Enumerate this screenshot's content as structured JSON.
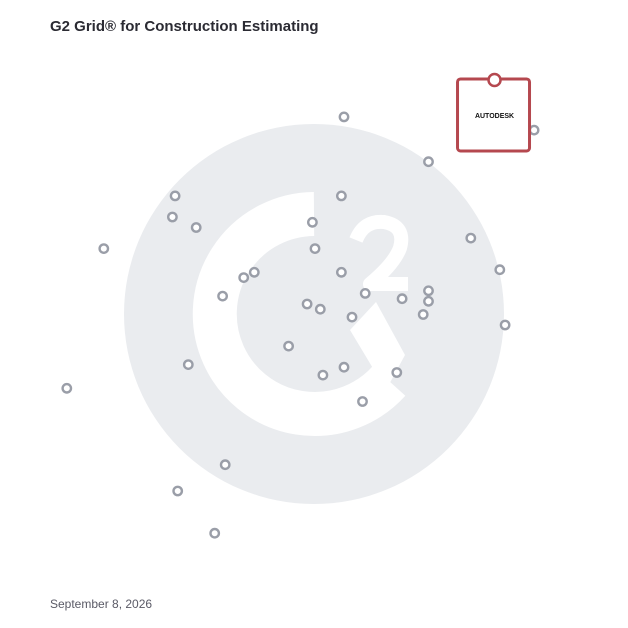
{
  "header": {
    "title": "G2 Grid® for Construction Estimating"
  },
  "footer": {
    "date": "September 8, 2026"
  },
  "chart_data": {
    "type": "scatter",
    "title": "G2 Grid® for Construction Estimating",
    "xlabel": "",
    "ylabel": "",
    "xlim": [
      0,
      100
    ],
    "ylim": [
      0,
      100
    ],
    "quadrant_dividers": {
      "x": 50,
      "y": 50
    },
    "grid": false,
    "points": [
      {
        "x": 55.5,
        "y": 87.5
      },
      {
        "x": 71.5,
        "y": 79.0
      },
      {
        "x": 23.5,
        "y": 72.5
      },
      {
        "x": 55.0,
        "y": 72.5
      },
      {
        "x": 23.0,
        "y": 68.5
      },
      {
        "x": 27.5,
        "y": 66.5
      },
      {
        "x": 49.5,
        "y": 67.5
      },
      {
        "x": 10.0,
        "y": 62.5
      },
      {
        "x": 50.0,
        "y": 62.5
      },
      {
        "x": 79.5,
        "y": 64.5
      },
      {
        "x": 55.0,
        "y": 58.0
      },
      {
        "x": 85.0,
        "y": 58.5
      },
      {
        "x": 36.5,
        "y": 57.0
      },
      {
        "x": 38.5,
        "y": 58.0
      },
      {
        "x": 59.5,
        "y": 54.0
      },
      {
        "x": 71.5,
        "y": 54.5
      },
      {
        "x": 32.5,
        "y": 53.5
      },
      {
        "x": 66.5,
        "y": 53.0
      },
      {
        "x": 71.5,
        "y": 52.5
      },
      {
        "x": 48.5,
        "y": 52.0
      },
      {
        "x": 51.0,
        "y": 51.0
      },
      {
        "x": 57.0,
        "y": 49.5
      },
      {
        "x": 70.5,
        "y": 50.0
      },
      {
        "x": 86.0,
        "y": 48.0
      },
      {
        "x": 45.0,
        "y": 44.0
      },
      {
        "x": 26.0,
        "y": 40.5
      },
      {
        "x": 55.5,
        "y": 40.0
      },
      {
        "x": 51.5,
        "y": 38.5
      },
      {
        "x": 65.5,
        "y": 39.0
      },
      {
        "x": 3.0,
        "y": 36.0
      },
      {
        "x": 59.0,
        "y": 33.5
      },
      {
        "x": 33.0,
        "y": 21.5
      },
      {
        "x": 24.0,
        "y": 16.5
      },
      {
        "x": 31.0,
        "y": 8.5
      },
      {
        "x": 91.5,
        "y": 85.0
      }
    ],
    "highlighted": {
      "label": "AUTODESK",
      "x": 84.0,
      "y": 94.5
    },
    "colors": {
      "point": "#9a9ea8",
      "highlight": "#b5484f",
      "watermark": "#e9ebee",
      "frame_gradient": [
        "#6a3fb3",
        "#e8553a",
        "#2aa0d8",
        "#7a3fb0"
      ]
    }
  }
}
